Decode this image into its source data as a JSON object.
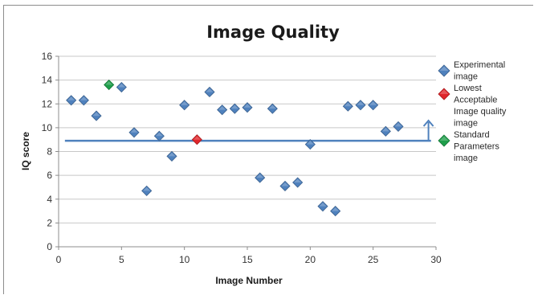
{
  "chart_data": {
    "type": "scatter",
    "title": "Image Quality",
    "xlabel": "Image Number",
    "ylabel": "IQ score",
    "xlim": [
      0,
      30
    ],
    "ylim": [
      0,
      16
    ],
    "x_ticks": [
      0,
      5,
      10,
      15,
      20,
      25,
      30
    ],
    "y_ticks": [
      0,
      2,
      4,
      6,
      8,
      10,
      12,
      14,
      16
    ],
    "grid": true,
    "legend_position": "right",
    "series": [
      {
        "name": "Experimental image",
        "color": "#4f81bd",
        "marker": "diamond",
        "points": [
          [
            1,
            12.3
          ],
          [
            2,
            12.3
          ],
          [
            3,
            11.0
          ],
          [
            5,
            13.4
          ],
          [
            6,
            9.6
          ],
          [
            7,
            4.7
          ],
          [
            8,
            9.3
          ],
          [
            9,
            7.6
          ],
          [
            10,
            11.9
          ],
          [
            12,
            13.0
          ],
          [
            13,
            11.5
          ],
          [
            14,
            11.6
          ],
          [
            15,
            11.7
          ],
          [
            16,
            5.8
          ],
          [
            17,
            11.6
          ],
          [
            18,
            5.1
          ],
          [
            19,
            5.4
          ],
          [
            20,
            8.6
          ],
          [
            21,
            3.4
          ],
          [
            22,
            3.0
          ],
          [
            23,
            11.8
          ],
          [
            24,
            11.9
          ],
          [
            25,
            11.9
          ],
          [
            26,
            9.7
          ],
          [
            27,
            10.1
          ]
        ]
      },
      {
        "name": "Lowest Acceptable Image quality image",
        "color": "#e0262b",
        "marker": "diamond",
        "points": [
          [
            11,
            9.0
          ]
        ]
      },
      {
        "name": "Standard Parameters image",
        "color": "#1e9e4a",
        "marker": "diamond",
        "points": [
          [
            4,
            13.6
          ]
        ]
      }
    ],
    "annotations": {
      "threshold_line": {
        "y": 8.9,
        "x_start": 0.5,
        "x_end": 29.6,
        "color": "#4f81bd"
      },
      "arrow": {
        "x": 29.4,
        "y_from": 8.9,
        "y_to": 10.6,
        "color": "#4f81bd"
      }
    }
  }
}
